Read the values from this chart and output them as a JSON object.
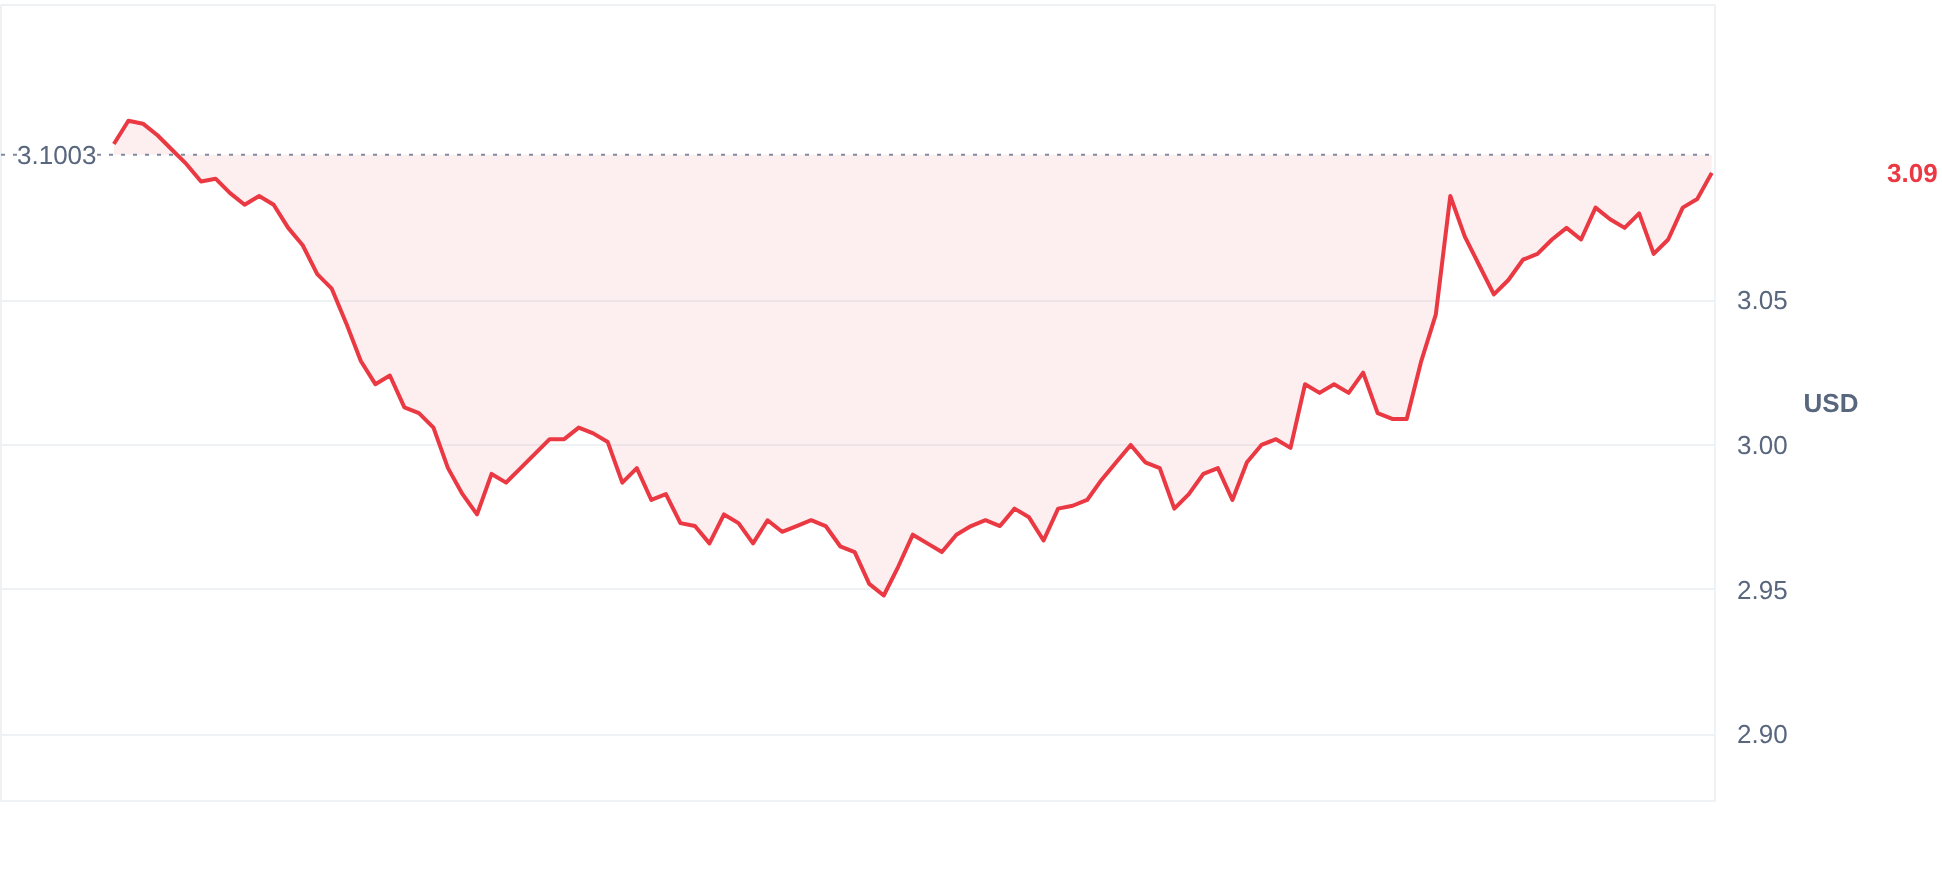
{
  "chart_data": {
    "type": "line",
    "categories": [
      null,
      null,
      null,
      null,
      null,
      null,
      null,
      null,
      null,
      null,
      null,
      null,
      null,
      null,
      null,
      null,
      null,
      null,
      null,
      null,
      null,
      null,
      null,
      null,
      null,
      null,
      null,
      null,
      null,
      null,
      null,
      null,
      null,
      null,
      null,
      null,
      null,
      null,
      null,
      null,
      null,
      null,
      null,
      null,
      null,
      null,
      null,
      null,
      null,
      null,
      null,
      null,
      null,
      null,
      null,
      null,
      null,
      null,
      null,
      null,
      null,
      null,
      null,
      null,
      null,
      null,
      null,
      null,
      null,
      null,
      null,
      null,
      null,
      null,
      null,
      null,
      null,
      null,
      null,
      null,
      null,
      null,
      null,
      null,
      null,
      null,
      null,
      null,
      null,
      null,
      null,
      null,
      null,
      null,
      null,
      null,
      null,
      null,
      null,
      null,
      null,
      null,
      null,
      null,
      null,
      null,
      null,
      null,
      null,
      null,
      null
    ],
    "series": [
      {
        "color": "#ea3943",
        "values": [
          3.104,
          3.112,
          3.111,
          3.107,
          3.102,
          3.097,
          3.091,
          3.092,
          3.087,
          3.083,
          3.086,
          3.083,
          3.075,
          3.069,
          3.059,
          3.054,
          3.042,
          3.029,
          3.021,
          3.024,
          3.013,
          3.011,
          3.006,
          2.992,
          2.983,
          2.976,
          2.99,
          2.987,
          2.992,
          2.997,
          3.002,
          3.002,
          3.006,
          3.004,
          3.001,
          2.987,
          2.992,
          2.981,
          2.983,
          2.973,
          2.972,
          2.966,
          2.976,
          2.973,
          2.966,
          2.974,
          2.97,
          2.972,
          2.974,
          2.972,
          2.965,
          2.963,
          2.952,
          2.948,
          2.958,
          2.969,
          2.966,
          2.963,
          2.969,
          2.972,
          2.974,
          2.972,
          2.978,
          2.975,
          2.967,
          2.978,
          2.979,
          2.981,
          2.988,
          2.994,
          3.0,
          2.994,
          2.992,
          2.978,
          2.983,
          2.99,
          2.992,
          2.981,
          2.994,
          3.0,
          3.002,
          2.999,
          3.021,
          3.018,
          3.021,
          3.018,
          3.025,
          3.011,
          3.009,
          3.009,
          3.029,
          3.045,
          3.086,
          3.072,
          3.062,
          3.052,
          3.057,
          3.064,
          3.066,
          3.071,
          3.075,
          3.071,
          3.082,
          3.078,
          3.075,
          3.08,
          3.066,
          3.071,
          3.082,
          3.085,
          3.094
        ]
      }
    ],
    "ylim": [
      2.877,
      3.152
    ],
    "yticks": [
      {
        "value": 2.9,
        "label": "2.90"
      },
      {
        "value": 2.95,
        "label": "2.95"
      },
      {
        "value": 3.0,
        "label": "3.00"
      },
      {
        "value": 3.05,
        "label": "3.05"
      }
    ],
    "ylabel": "USD",
    "ref_lines": [
      {
        "axis": "y",
        "value": 3.1003,
        "label": "3.1003",
        "line_style": "dotted",
        "color": "#808a9d"
      }
    ],
    "annotations": [
      "3.09"
    ],
    "grid": "y",
    "tick_labels": "y"
  }
}
